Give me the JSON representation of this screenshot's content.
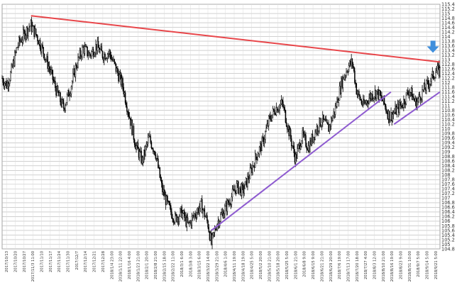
{
  "chart_data": {
    "type": "candlestick",
    "title": "",
    "xlabel": "",
    "ylabel": "",
    "ylim": [
      104.8,
      115.4
    ],
    "y_ticks": [
      "104.8",
      "105",
      "105.2",
      "105.4",
      "105.6",
      "105.8",
      "106",
      "106.2",
      "106.4",
      "106.6",
      "106.8",
      "107",
      "107.2",
      "107.4",
      "107.6",
      "107.8",
      "108",
      "108.2",
      "108.4",
      "108.6",
      "108.8",
      "109",
      "109.2",
      "109.4",
      "109.6",
      "109.8",
      "110",
      "110.2",
      "110.4",
      "110.6",
      "110.8",
      "111",
      "111.2",
      "111.4",
      "111.6",
      "111.8",
      "112",
      "112.2",
      "112.4",
      "112.6",
      "112.8",
      "113",
      "113.2",
      "113.4",
      "113.6",
      "113.8",
      "114",
      "114.2",
      "114.4",
      "114.6",
      "114.8",
      "115",
      "115.2",
      "115.4"
    ],
    "x_tick_labels": [
      "2017/10/13",
      "2017/10/20",
      "2017/10/27",
      "2017/11/3 11:00",
      "2017/11/10",
      "2017/11/17",
      "2017/11/24",
      "2017/11/30",
      "2017/12/7",
      "2017/12/14",
      "2017/12/21",
      "2017/12/28",
      "2018/1/4 23:00",
      "2018/1/11 22:00",
      "2018/1/16 4:00",
      "2018/1/23 21:00",
      "2018/2/1 20:00",
      "2018/2/8 21:00",
      "2018/2/15 18:00",
      "2018/2/22 11:00",
      "2018/3/1 6:00",
      "2018/3/8 3:00",
      "2018/3/15 6:00",
      "2018/3/22 14:00",
      "2018/3/29 21:00",
      "2018/4/6 1:00",
      "2018/4/11 19:00",
      "2018/4/18 19:00",
      "2018/4/25 5:00",
      "2018/5/2 20:00",
      "2018/5/10 21:00",
      "2018/5/18 20:00",
      "2018/5/25 5:00",
      "2018/6/1 21:00",
      "2018/6/8 9:00",
      "2018/6/15 9:00",
      "2018/6/21 21:00",
      "2018/6/29 20:00",
      "2018/7/6 19:00",
      "2018/7/13 17:00",
      "2018/7/20 18:00",
      "2018/7/27 4:00",
      "2018/8/3 12:00",
      "2018/8/10 21:00",
      "2018/8/16 19:00",
      "2018/8/23 9:00",
      "2018/8/31 10:00",
      "2018/9/7 5:00",
      "2018/9/14 5:00",
      "2018/9/21 5:00"
    ],
    "price_path": [
      [
        0,
        112.2
      ],
      [
        0.01,
        111.9
      ],
      [
        0.02,
        112.4
      ],
      [
        0.035,
        113.6
      ],
      [
        0.05,
        114.1
      ],
      [
        0.065,
        114.5
      ],
      [
        0.08,
        114.0
      ],
      [
        0.095,
        113.3
      ],
      [
        0.11,
        112.5
      ],
      [
        0.125,
        111.6
      ],
      [
        0.14,
        110.9
      ],
      [
        0.155,
        111.7
      ],
      [
        0.17,
        112.8
      ],
      [
        0.185,
        113.5
      ],
      [
        0.2,
        113.2
      ],
      [
        0.215,
        113.6
      ],
      [
        0.23,
        113.2
      ],
      [
        0.245,
        113.3
      ],
      [
        0.26,
        112.6
      ],
      [
        0.275,
        111.9
      ],
      [
        0.29,
        110.6
      ],
      [
        0.305,
        109.3
      ],
      [
        0.32,
        108.6
      ],
      [
        0.335,
        109.6
      ],
      [
        0.35,
        109.0
      ],
      [
        0.365,
        107.4
      ],
      [
        0.38,
        106.6
      ],
      [
        0.395,
        106.1
      ],
      [
        0.41,
        106.4
      ],
      [
        0.425,
        105.8
      ],
      [
        0.44,
        106.3
      ],
      [
        0.455,
        106.7
      ],
      [
        0.47,
        105.9
      ],
      [
        0.478,
        105.0
      ],
      [
        0.49,
        105.9
      ],
      [
        0.505,
        106.4
      ],
      [
        0.52,
        106.9
      ],
      [
        0.535,
        107.5
      ],
      [
        0.55,
        107.3
      ],
      [
        0.565,
        108.0
      ],
      [
        0.58,
        108.8
      ],
      [
        0.595,
        109.4
      ],
      [
        0.61,
        110.4
      ],
      [
        0.625,
        110.9
      ],
      [
        0.64,
        111.1
      ],
      [
        0.655,
        109.9
      ],
      [
        0.67,
        108.7
      ],
      [
        0.685,
        109.7
      ],
      [
        0.7,
        109.2
      ],
      [
        0.715,
        109.9
      ],
      [
        0.73,
        110.4
      ],
      [
        0.745,
        110.0
      ],
      [
        0.76,
        110.8
      ],
      [
        0.775,
        112.0
      ],
      [
        0.79,
        112.7
      ],
      [
        0.8,
        112.9
      ],
      [
        0.81,
        111.6
      ],
      [
        0.825,
        111.0
      ],
      [
        0.84,
        111.4
      ],
      [
        0.855,
        111.6
      ],
      [
        0.87,
        111.2
      ],
      [
        0.885,
        110.5
      ],
      [
        0.9,
        110.8
      ],
      [
        0.915,
        111.1
      ],
      [
        0.93,
        111.7
      ],
      [
        0.945,
        111.1
      ],
      [
        0.96,
        111.6
      ],
      [
        0.975,
        112.0
      ],
      [
        0.99,
        112.5
      ],
      [
        1.0,
        112.5
      ]
    ],
    "trendlines": [
      {
        "color": "#e8464a",
        "points": [
          [
            0.066,
            114.9
          ],
          [
            1.0,
            112.9
          ]
        ]
      },
      {
        "color": "#8e5bd0",
        "points": [
          [
            0.478,
            105.6
          ],
          [
            0.888,
            111.6
          ]
        ]
      },
      {
        "color": "#8e5bd0",
        "points": [
          [
            0.895,
            110.2
          ],
          [
            1.0,
            111.6
          ]
        ]
      }
    ],
    "arrow": {
      "color": "#3f8fdc",
      "points_at": 113.3
    }
  }
}
